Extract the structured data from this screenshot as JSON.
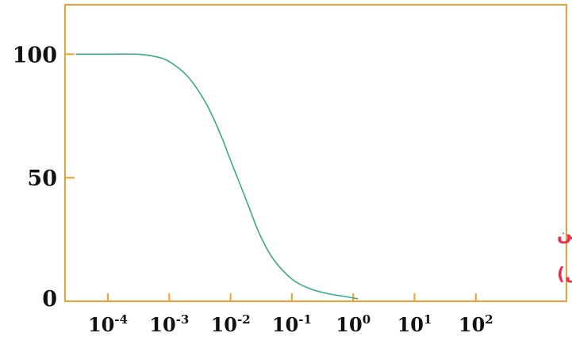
{
  "chart_data": {
    "type": "line",
    "title": "",
    "xlabel": "",
    "ylabel": "",
    "x_scale": "log",
    "x_ticks": [
      {
        "value": 0.0001,
        "base": "10",
        "exp": "-4"
      },
      {
        "value": 0.001,
        "base": "10",
        "exp": "-3"
      },
      {
        "value": 0.01,
        "base": "10",
        "exp": "-2"
      },
      {
        "value": 0.1,
        "base": "10",
        "exp": "-1"
      },
      {
        "value": 1,
        "base": "10",
        "exp": "0"
      },
      {
        "value": 10,
        "base": "10",
        "exp": "1"
      },
      {
        "value": 100,
        "base": "10",
        "exp": "2"
      }
    ],
    "y_ticks": [
      100,
      50,
      0
    ],
    "xlim": [
      2e-05,
      3000
    ],
    "ylim": [
      0,
      120
    ],
    "grid": false,
    "annotation": {
      "line1": "تركيز ألفا أمانتين",
      "line2": "(ميكروغرام/ مل)",
      "color": "#e8304a"
    },
    "series": [
      {
        "color": "#3aa88a",
        "x": [
          3e-05,
          0.0001,
          0.0003,
          0.0006,
          0.001,
          0.002,
          0.004,
          0.007,
          0.01,
          0.015,
          0.02,
          0.03,
          0.05,
          0.1,
          0.2,
          0.4,
          0.7,
          1.2
        ],
        "y": [
          100,
          100,
          100,
          99,
          97,
          91,
          80,
          67,
          57,
          46,
          38,
          27,
          17,
          9,
          5,
          3,
          2,
          1
        ]
      }
    ],
    "frame_color": "#f0a030",
    "axis_color": "#f0a030"
  }
}
